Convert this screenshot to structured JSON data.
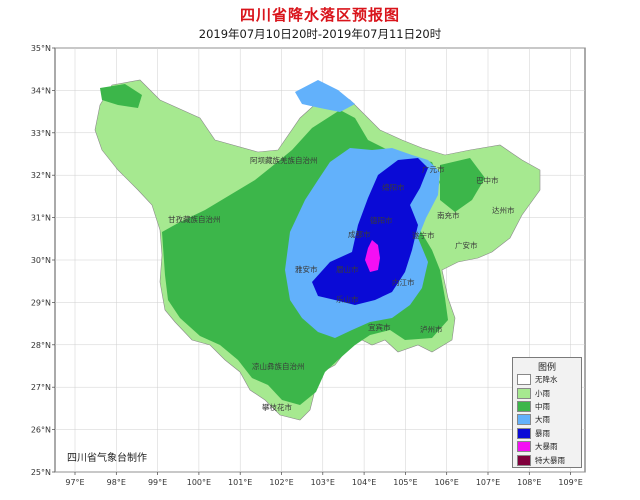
{
  "title": "四川省降水落区预报图",
  "subtitle": "2019年07月10日20时-2019年07月11日20时",
  "credit": "四川省气象台制作",
  "axes": {
    "lat_labels": [
      "35°N",
      "34°N",
      "33°N",
      "32°N",
      "31°N",
      "30°N",
      "29°N",
      "28°N",
      "27°N",
      "26°N",
      "25°N"
    ],
    "lon_labels": [
      "97°E",
      "98°E",
      "99°E",
      "100°E",
      "101°E",
      "102°E",
      "103°E",
      "104°E",
      "105°E",
      "106°E",
      "107°E",
      "108°E",
      "109°E"
    ]
  },
  "legend": {
    "title": "图例",
    "items": [
      {
        "label": "无降水",
        "color": "#ffffff"
      },
      {
        "label": "小雨",
        "color": "#a6e990"
      },
      {
        "label": "中雨",
        "color": "#3cb64a"
      },
      {
        "label": "大雨",
        "color": "#62b1fb"
      },
      {
        "label": "暴雨",
        "color": "#0a0ad6"
      },
      {
        "label": "大暴雨",
        "color": "#f40ff4"
      },
      {
        "label": "特大暴雨",
        "color": "#80003c"
      }
    ]
  },
  "cities": [
    "阿坝藏族羌族自治州",
    "甘孜藏族自治州",
    "凉山彝族自治州",
    "攀枝花市",
    "绵阳市",
    "德阳市",
    "成都市",
    "雅安市",
    "眉山市",
    "乐山市",
    "内江市",
    "宜宾市",
    "泸州市",
    "遂宁市",
    "南充市",
    "广安市",
    "达州市",
    "巴中市",
    "广元市"
  ]
}
